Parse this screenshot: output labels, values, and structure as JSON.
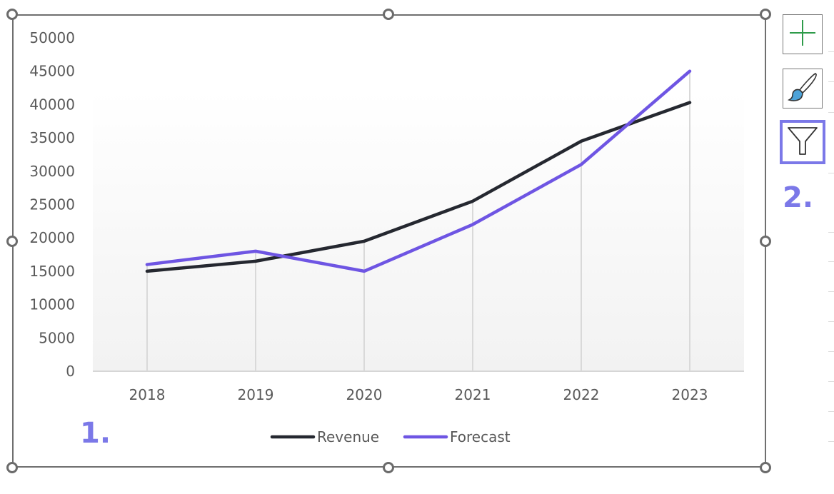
{
  "chart_data": {
    "type": "line",
    "categories": [
      "2018",
      "2019",
      "2020",
      "2021",
      "2022",
      "2023"
    ],
    "series": [
      {
        "name": "Revenue",
        "values": [
          15000,
          16500,
          19500,
          25500,
          34500,
          40300
        ],
        "color": "#252830"
      },
      {
        "name": "Forecast",
        "values": [
          16000,
          18000,
          15000,
          22000,
          31000,
          45000
        ],
        "color": "#6e55e3"
      }
    ],
    "ylim": [
      0,
      50000
    ],
    "yticks": [
      "0",
      "5000",
      "10000",
      "15000",
      "20000",
      "25000",
      "30000",
      "35000",
      "40000",
      "45000",
      "50000"
    ],
    "grid": "vertical drop lines at each category",
    "legend_position": "bottom",
    "title": "",
    "xlabel": "",
    "ylabel": ""
  },
  "side_buttons": {
    "add": {
      "icon": "plus-icon"
    },
    "style": {
      "icon": "paintbrush-icon"
    },
    "filter": {
      "icon": "funnel-icon"
    }
  },
  "steps": {
    "step1": "1.",
    "step2": "2."
  },
  "colors": {
    "accent": "#7b78e8",
    "plus": "#2e9b4a",
    "brush": "#4da3d9"
  }
}
